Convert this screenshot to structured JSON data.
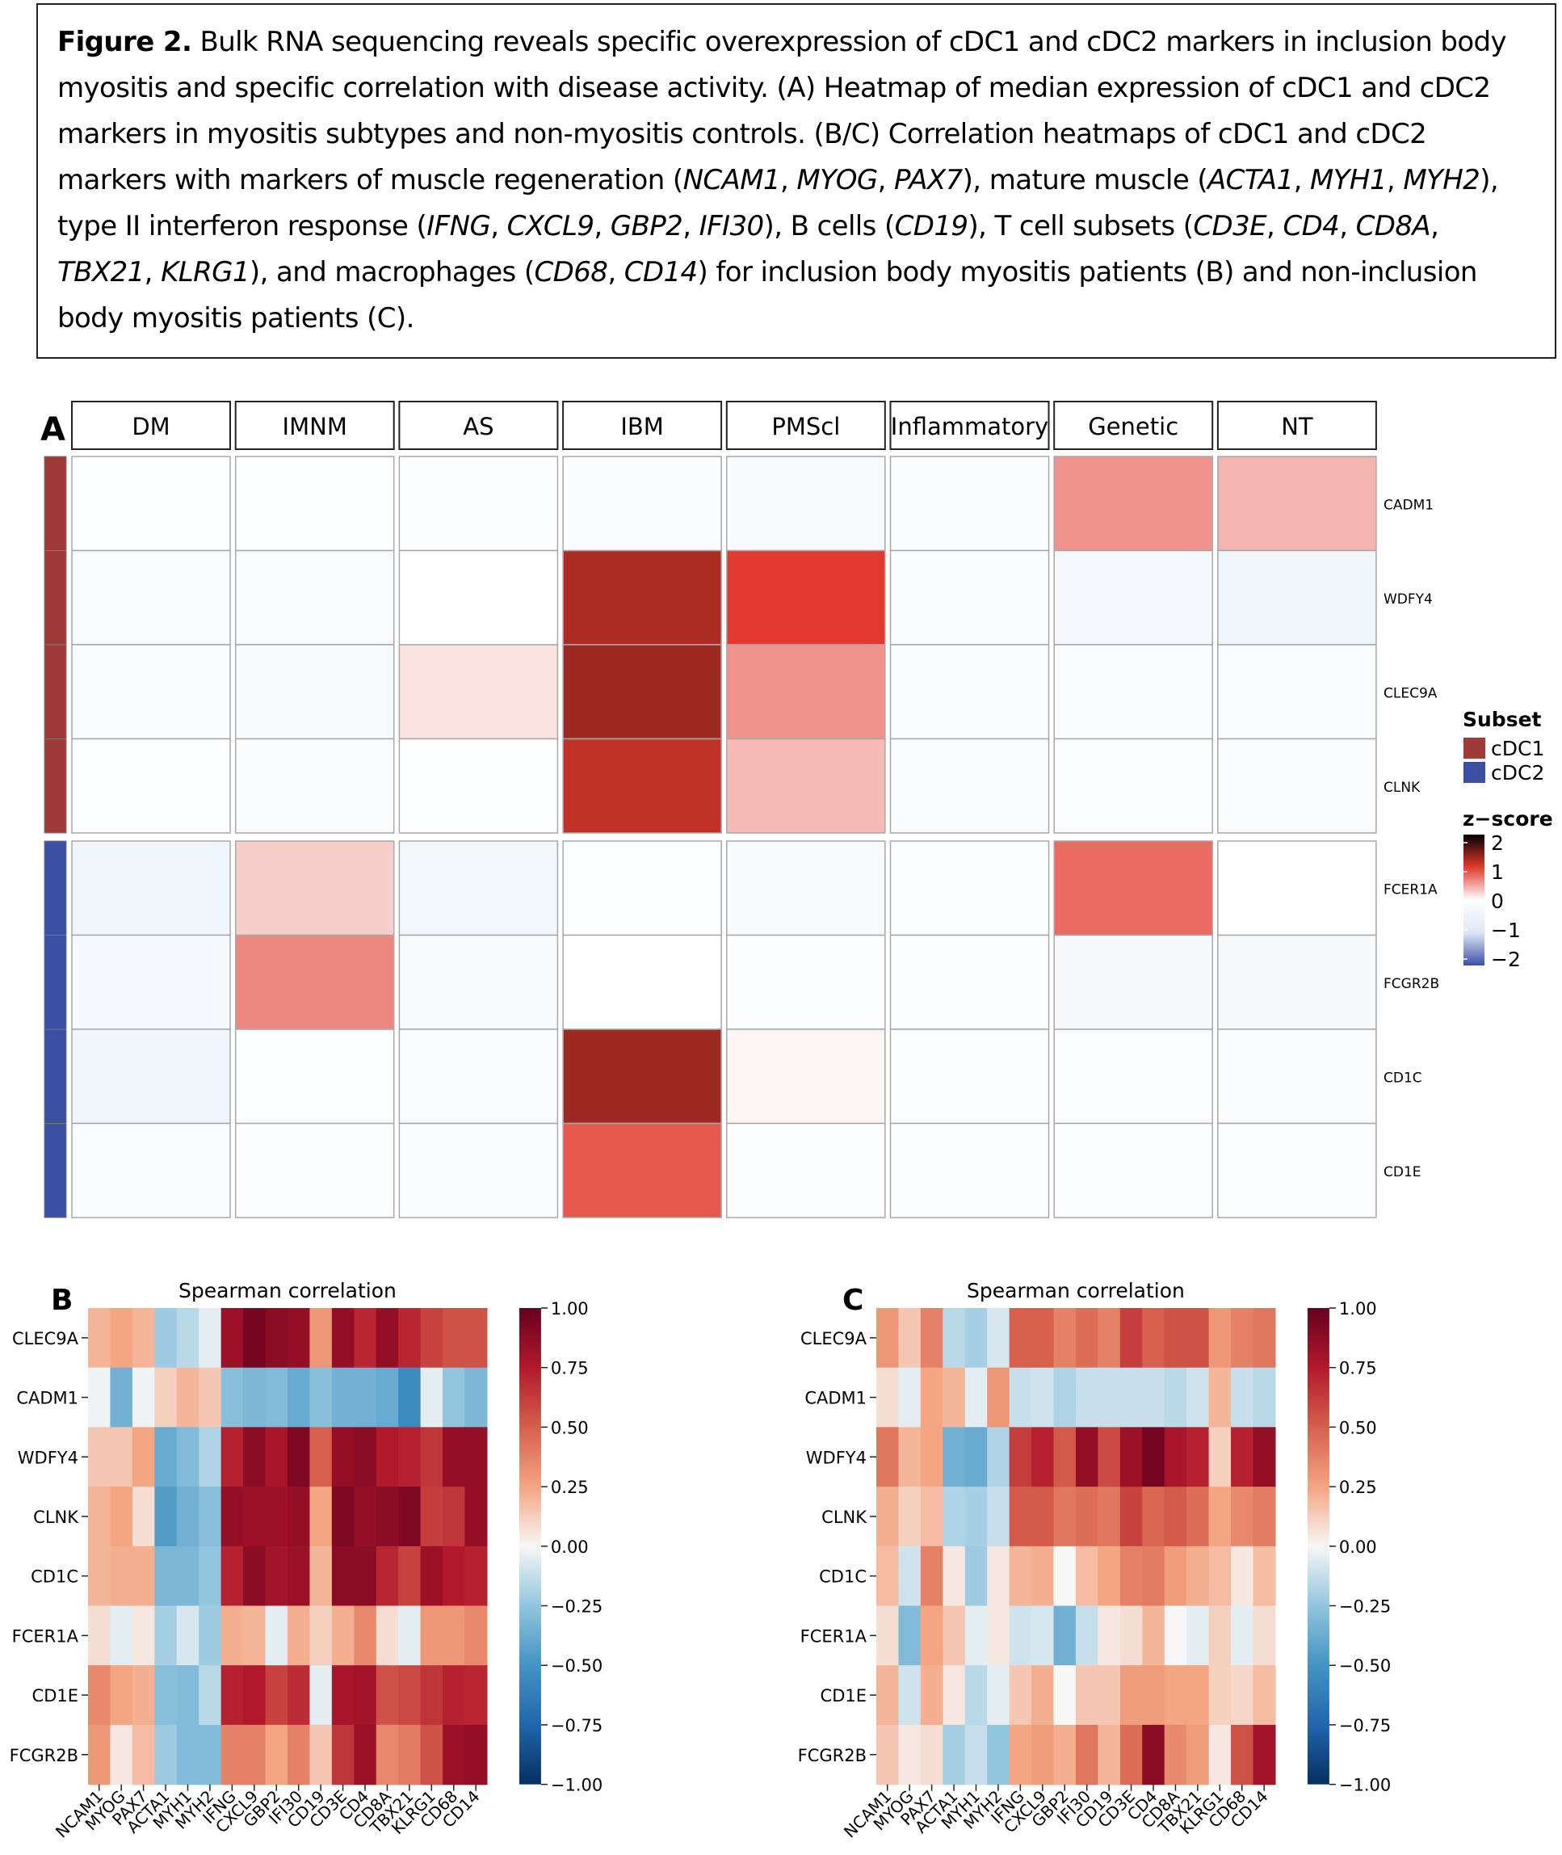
{
  "caption": {
    "label": "Figure 2.",
    "parts": [
      {
        "t": " Bulk RNA sequencing reveals specific overexpression of cDC1 and cDC2 markers in inclusion body myositis and specific correlation with disease activity. (A) Heatmap of median expression of cDC1 and cDC2 markers in myositis subtypes and non-myositis controls. (B/C) Correlation heatmaps of cDC1 and cDC2 markers with markers of muscle regeneration ("
      },
      {
        "t": "NCAM1",
        "i": true
      },
      {
        "t": ", "
      },
      {
        "t": "MYOG",
        "i": true
      },
      {
        "t": ", "
      },
      {
        "t": "PAX7",
        "i": true
      },
      {
        "t": "), mature muscle ("
      },
      {
        "t": "ACTA1",
        "i": true
      },
      {
        "t": ", "
      },
      {
        "t": "MYH1",
        "i": true
      },
      {
        "t": ", "
      },
      {
        "t": "MYH2",
        "i": true
      },
      {
        "t": "), type II interferon response ("
      },
      {
        "t": "IFNG",
        "i": true
      },
      {
        "t": ", "
      },
      {
        "t": "CXCL9",
        "i": true
      },
      {
        "t": ", "
      },
      {
        "t": "GBP2",
        "i": true
      },
      {
        "t": ", "
      },
      {
        "t": "IFI30",
        "i": true
      },
      {
        "t": "), B cells ("
      },
      {
        "t": "CD19",
        "i": true
      },
      {
        "t": "), T cell subsets ("
      },
      {
        "t": "CD3E",
        "i": true
      },
      {
        "t": ", "
      },
      {
        "t": "CD4",
        "i": true
      },
      {
        "t": ", "
      },
      {
        "t": "CD8A",
        "i": true
      },
      {
        "t": ", "
      },
      {
        "t": "TBX21",
        "i": true
      },
      {
        "t": ", "
      },
      {
        "t": "KLRG1",
        "i": true
      },
      {
        "t": "), and macrophages ("
      },
      {
        "t": "CD68",
        "i": true
      },
      {
        "t": ", "
      },
      {
        "t": "CD14",
        "i": true
      },
      {
        "t": ") for inclusion body myositis patients (B) and non-inclusion body myositis patients (C)."
      }
    ]
  },
  "chart_data": [
    {
      "type": "heatmap",
      "panel_label": "A",
      "columns": [
        "DM",
        "IMNM",
        "AS",
        "IBM",
        "PMScl",
        "Inflammatory",
        "Genetic",
        "NT"
      ],
      "rows": [
        "CADM1",
        "WDFY4",
        "CLEC9A",
        "CLNK",
        "FCER1A",
        "FCGR2B",
        "CD1C",
        "CD1E"
      ],
      "row_subsets": [
        "cDC1",
        "cDC1",
        "cDC1",
        "cDC1",
        "cDC2",
        "cDC2",
        "cDC2",
        "cDC2"
      ],
      "values": [
        [
          -0.05,
          -0.05,
          -0.12,
          -0.15,
          -0.2,
          -0.15,
          0.55,
          0.38
        ],
        [
          -0.18,
          -0.18,
          0.0,
          1.25,
          1.0,
          -0.15,
          -0.3,
          -0.5
        ],
        [
          -0.15,
          -0.2,
          0.15,
          1.3,
          0.55,
          -0.18,
          -0.18,
          -0.18
        ],
        [
          -0.05,
          -0.15,
          -0.02,
          1.15,
          0.35,
          -0.15,
          -0.12,
          -0.15
        ],
        [
          -0.5,
          0.25,
          -0.4,
          -0.05,
          -0.2,
          -0.12,
          0.75,
          0.0
        ],
        [
          -0.3,
          0.6,
          -0.2,
          0.0,
          -0.12,
          -0.1,
          -0.25,
          -0.25
        ],
        [
          -0.45,
          -0.05,
          -0.18,
          1.3,
          0.05,
          -0.1,
          -0.1,
          -0.15
        ],
        [
          -0.18,
          -0.1,
          -0.15,
          0.85,
          -0.1,
          -0.12,
          -0.1,
          -0.12
        ]
      ],
      "legend_subset": {
        "title": "Subset",
        "entries": [
          {
            "name": "cDC1",
            "color": "#9e3a38"
          },
          {
            "name": "cDC2",
            "color": "#3a4ea2"
          }
        ]
      },
      "legend_zscore": {
        "title": "z−score",
        "ticks": [
          "2",
          "1",
          "0",
          "−1",
          "−2"
        ]
      },
      "colors": {
        "cdc1": "#9e3a38",
        "cdc2": "#3a4ea2",
        "high": "#000000",
        "red": "#e23a2e",
        "mid": "#ffffff",
        "low": "#3c4fa8"
      }
    },
    {
      "type": "heatmap",
      "panel_label": "B",
      "title": "Spearman correlation",
      "x": [
        "NCAM1",
        "MYOG",
        "PAX7",
        "ACTA1",
        "MYH1",
        "MYH2",
        "IFNG",
        "CXCL9",
        "GBP2",
        "IFI30",
        "CD19",
        "CD3E",
        "CD4",
        "CD8A",
        "TBX21",
        "KLRG1",
        "CD68",
        "CD14"
      ],
      "y": [
        "CLEC9A",
        "CADM1",
        "WDFY4",
        "CLNK",
        "CD1C",
        "FCER1A",
        "CD1E",
        "FCGR2B"
      ],
      "values": [
        [
          0.2,
          0.25,
          0.2,
          -0.22,
          -0.15,
          -0.05,
          0.82,
          0.95,
          0.88,
          0.85,
          0.3,
          0.85,
          0.7,
          0.85,
          0.7,
          0.6,
          0.55,
          0.55
        ],
        [
          -0.02,
          -0.35,
          -0.02,
          0.12,
          0.2,
          0.15,
          -0.28,
          -0.32,
          -0.3,
          -0.38,
          -0.28,
          -0.35,
          -0.35,
          -0.38,
          -0.55,
          -0.05,
          -0.25,
          -0.32
        ],
        [
          0.15,
          0.15,
          0.25,
          -0.38,
          -0.3,
          -0.18,
          0.72,
          0.88,
          0.78,
          0.92,
          0.5,
          0.85,
          0.88,
          0.75,
          0.72,
          0.65,
          0.85,
          0.85
        ],
        [
          0.2,
          0.25,
          0.08,
          -0.45,
          -0.35,
          -0.28,
          0.85,
          0.82,
          0.82,
          0.85,
          0.25,
          0.92,
          0.85,
          0.88,
          0.92,
          0.62,
          0.65,
          0.85
        ],
        [
          0.2,
          0.22,
          0.22,
          -0.32,
          -0.32,
          -0.25,
          0.72,
          0.88,
          0.8,
          0.82,
          0.2,
          0.88,
          0.88,
          0.7,
          0.6,
          0.82,
          0.75,
          0.72
        ],
        [
          0.08,
          -0.05,
          0.05,
          -0.2,
          -0.08,
          -0.22,
          0.22,
          0.2,
          -0.05,
          0.22,
          0.12,
          0.22,
          0.35,
          0.08,
          -0.05,
          0.3,
          0.3,
          0.35
        ],
        [
          0.35,
          0.25,
          0.22,
          -0.28,
          -0.3,
          -0.15,
          0.72,
          0.75,
          0.6,
          0.68,
          -0.05,
          0.78,
          0.8,
          0.55,
          0.58,
          0.65,
          0.72,
          0.7
        ],
        [
          0.3,
          0.05,
          0.18,
          -0.22,
          -0.3,
          -0.3,
          0.38,
          0.38,
          0.25,
          0.38,
          0.15,
          0.65,
          0.82,
          0.35,
          0.4,
          0.55,
          0.82,
          0.85
        ]
      ],
      "vmin": -1.0,
      "vmax": 1.0,
      "colorbar_ticks": [
        "1.00",
        "0.75",
        "0.50",
        "0.25",
        "0.00",
        "−0.25",
        "−0.50",
        "−0.75",
        "−1.00"
      ]
    },
    {
      "type": "heatmap",
      "panel_label": "C",
      "title": "Spearman correlation",
      "x": [
        "NCAM1",
        "MYOG",
        "PAX7",
        "ACTA1",
        "MYH1",
        "MYH2",
        "IFNG",
        "CXCL9",
        "GBP2",
        "IFI30",
        "CD19",
        "CD3E",
        "CD4",
        "CD8A",
        "TBX21",
        "KLRG1",
        "CD68",
        "CD14"
      ],
      "y": [
        "CLEC9A",
        "CADM1",
        "WDFY4",
        "CLNK",
        "CD1C",
        "FCER1A",
        "CD1E",
        "FCGR2B"
      ],
      "values": [
        [
          0.3,
          0.15,
          0.38,
          -0.15,
          -0.2,
          -0.08,
          0.5,
          0.5,
          0.38,
          0.45,
          0.38,
          0.62,
          0.5,
          0.55,
          0.55,
          0.3,
          0.38,
          0.42
        ],
        [
          0.08,
          -0.05,
          0.25,
          0.2,
          -0.05,
          0.3,
          -0.12,
          -0.1,
          -0.18,
          -0.12,
          -0.12,
          -0.12,
          -0.12,
          -0.15,
          -0.1,
          0.2,
          -0.12,
          -0.15
        ],
        [
          0.42,
          0.2,
          0.25,
          -0.35,
          -0.38,
          -0.18,
          0.62,
          0.72,
          0.52,
          0.85,
          0.58,
          0.82,
          0.95,
          0.78,
          0.72,
          0.12,
          0.72,
          0.85
        ],
        [
          0.22,
          0.12,
          0.18,
          -0.18,
          -0.2,
          -0.12,
          0.52,
          0.52,
          0.42,
          0.45,
          0.42,
          0.6,
          0.48,
          0.52,
          0.45,
          0.25,
          0.35,
          0.4
        ],
        [
          0.18,
          -0.1,
          0.38,
          0.05,
          -0.22,
          0.05,
          0.2,
          0.22,
          0.0,
          0.18,
          0.25,
          0.38,
          0.4,
          0.28,
          0.22,
          0.18,
          0.05,
          0.18
        ],
        [
          0.08,
          -0.3,
          0.25,
          0.15,
          -0.05,
          0.05,
          -0.1,
          -0.08,
          -0.35,
          -0.12,
          0.05,
          0.08,
          0.2,
          0.0,
          -0.05,
          0.12,
          -0.05,
          0.08
        ],
        [
          0.2,
          -0.1,
          0.22,
          0.05,
          -0.15,
          -0.05,
          0.15,
          0.22,
          0.0,
          0.15,
          0.15,
          0.28,
          0.28,
          0.25,
          0.25,
          0.12,
          0.1,
          0.18
        ],
        [
          0.15,
          0.05,
          0.08,
          -0.2,
          -0.12,
          -0.25,
          0.25,
          0.28,
          0.22,
          0.42,
          0.2,
          0.45,
          0.88,
          0.35,
          0.28,
          0.05,
          0.55,
          0.8
        ]
      ],
      "vmin": -1.0,
      "vmax": 1.0,
      "colorbar_ticks": [
        "1.00",
        "0.75",
        "0.50",
        "0.25",
        "0.00",
        "−0.25",
        "−0.50",
        "−0.75",
        "−1.00"
      ]
    }
  ]
}
